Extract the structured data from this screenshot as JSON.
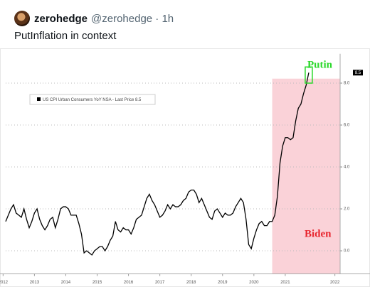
{
  "tweet": {
    "name": "zerohedge",
    "meta": "@zerohedge · 1h",
    "text": "PutInflation in context"
  },
  "chart_data": {
    "type": "line",
    "legend_text": "US CPI Urban Consumers YoY NSA - Last Price 8.5",
    "last_price": 8.5,
    "annotations": [
      {
        "text": "Putin",
        "color": "#2bd82b"
      },
      {
        "text": "Biden",
        "color": "#e8262f"
      }
    ],
    "highlight": {
      "from": 102,
      "to": 128,
      "color": "#fad2d8"
    },
    "series": [
      {
        "name": "US CPI Urban Consumers YoY NSA",
        "color": "#000000",
        "values": [
          1.4,
          1.7,
          2.0,
          2.2,
          1.8,
          1.7,
          1.6,
          2.0,
          1.5,
          1.1,
          1.4,
          1.8,
          2.0,
          1.5,
          1.2,
          1.0,
          1.2,
          1.5,
          1.6,
          1.1,
          1.5,
          2.0,
          2.1,
          2.1,
          2.0,
          1.7,
          1.7,
          1.7,
          1.3,
          0.8,
          -0.1,
          0.0,
          -0.1,
          -0.2,
          0.0,
          0.1,
          0.2,
          0.2,
          0.0,
          0.2,
          0.5,
          0.7,
          1.4,
          1.0,
          0.9,
          1.1,
          1.0,
          1.0,
          0.8,
          1.1,
          1.5,
          1.6,
          1.7,
          2.1,
          2.5,
          2.7,
          2.4,
          2.2,
          1.9,
          1.6,
          1.7,
          1.9,
          2.2,
          2.0,
          2.2,
          2.1,
          2.1,
          2.2,
          2.4,
          2.5,
          2.8,
          2.9,
          2.9,
          2.7,
          2.3,
          2.5,
          2.2,
          1.9,
          1.6,
          1.5,
          1.9,
          2.0,
          1.8,
          1.6,
          1.8,
          1.7,
          1.7,
          1.8,
          2.1,
          2.3,
          2.5,
          2.3,
          1.5,
          0.3,
          0.1,
          0.6,
          1.0,
          1.3,
          1.4,
          1.2,
          1.2,
          1.4,
          1.4,
          1.7,
          2.6,
          4.2,
          5.0,
          5.4,
          5.4,
          5.3,
          5.4,
          6.2,
          6.8,
          7.0,
          7.5,
          7.9,
          8.5
        ]
      }
    ],
    "xlim": [
      0,
      128
    ],
    "xticks": [
      {
        "value": -1,
        "label": "2012"
      },
      {
        "value": 11,
        "label": "2013"
      },
      {
        "value": 23,
        "label": "2014"
      },
      {
        "value": 35,
        "label": "2015"
      },
      {
        "value": 47,
        "label": "2016"
      },
      {
        "value": 59,
        "label": "2017"
      },
      {
        "value": 71,
        "label": "2018"
      },
      {
        "value": 83,
        "label": "2019"
      },
      {
        "value": 95,
        "label": "2020"
      },
      {
        "value": 107,
        "label": "2021"
      },
      {
        "value": 126,
        "label": "2022"
      }
    ],
    "ylim": [
      -1.1,
      9.4
    ],
    "yticks": [
      {
        "value": 0,
        "label": "0.0"
      },
      {
        "value": 2,
        "label": "2.0"
      },
      {
        "value": 4,
        "label": "4.0"
      },
      {
        "value": 6,
        "label": "6.0"
      },
      {
        "value": 8,
        "label": "8.0"
      }
    ],
    "grid": true
  }
}
